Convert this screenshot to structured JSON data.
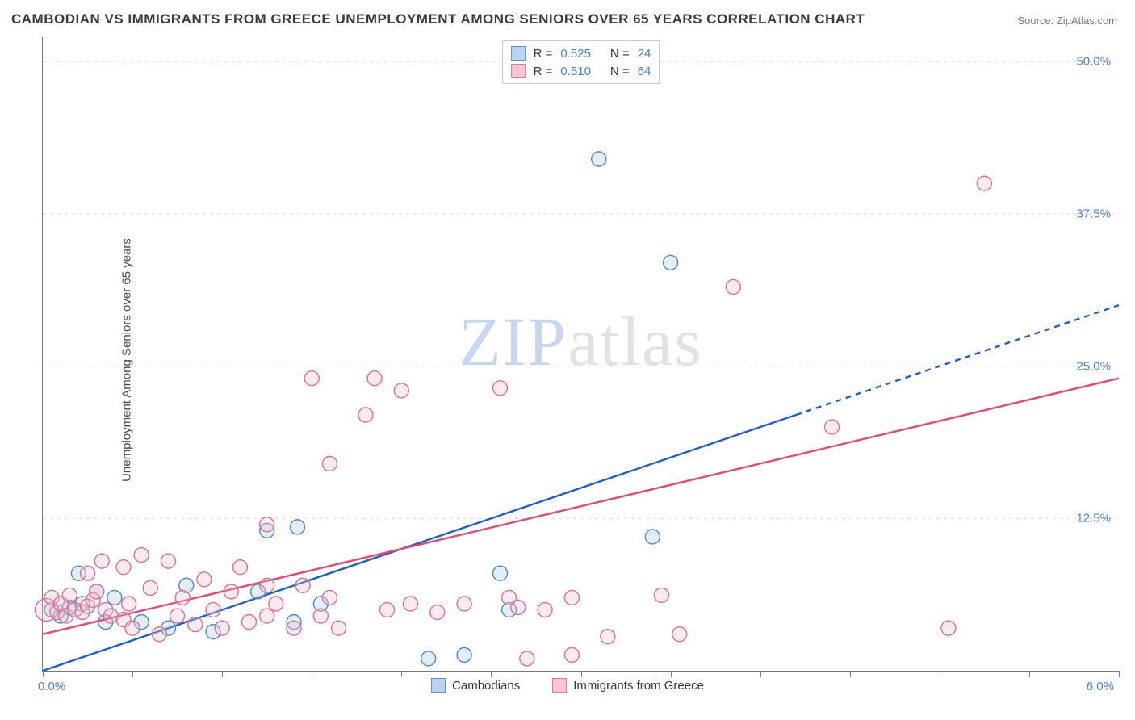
{
  "title": "CAMBODIAN VS IMMIGRANTS FROM GREECE UNEMPLOYMENT AMONG SENIORS OVER 65 YEARS CORRELATION CHART",
  "source": "Source: ZipAtlas.com",
  "ylabel": "Unemployment Among Seniors over 65 years",
  "watermark": {
    "a": "ZIP",
    "b": "atlas"
  },
  "chart": {
    "type": "scatter",
    "background_color": "#ffffff",
    "grid_color": "#d8d8d8",
    "border_color": "#777777",
    "label_color": "#4a7fd6",
    "xlim": [
      0.0,
      6.0
    ],
    "ylim": [
      0.0,
      52.0
    ],
    "x_origin_label": "0.0%",
    "x_max_label": "6.0%",
    "y_ticks": [
      {
        "v": 12.5,
        "label": "12.5%"
      },
      {
        "v": 25.0,
        "label": "25.0%"
      },
      {
        "v": 37.5,
        "label": "37.5%"
      },
      {
        "v": 50.0,
        "label": "50.0%"
      }
    ],
    "x_ticks": [
      0.0,
      0.5,
      1.0,
      1.5,
      2.0,
      2.5,
      3.0,
      3.5,
      4.0,
      4.5,
      5.0,
      5.5,
      6.0
    ],
    "legend_top": [
      {
        "swatch_fill": "#bcd4f3",
        "swatch_stroke": "#5a8fd6",
        "r": "0.525",
        "n": "24"
      },
      {
        "swatch_fill": "#f6c6d2",
        "swatch_stroke": "#e07893",
        "r": "0.510",
        "n": "64"
      }
    ],
    "legend_bottom": [
      {
        "swatch_fill": "#bcd4f3",
        "swatch_stroke": "#5a8fd6",
        "label": "Cambodians"
      },
      {
        "swatch_fill": "#f6c6d2",
        "swatch_stroke": "#e07893",
        "label": "Immigrants from Greece"
      }
    ],
    "marker_radius": 9,
    "large_marker_radius": 14,
    "series": [
      {
        "name": "Cambodians",
        "color_fill": "#a9caf1",
        "color_stroke": "#4f86d1",
        "trend": {
          "color": "#205fc2",
          "width": 2.4,
          "y0": 0.0,
          "y1": 30.0,
          "solid_xmax": 4.2
        },
        "points": [
          {
            "x": 0.05,
            "y": 5.0
          },
          {
            "x": 0.1,
            "y": 4.5
          },
          {
            "x": 0.15,
            "y": 5.2
          },
          {
            "x": 0.2,
            "y": 8.0
          },
          {
            "x": 0.22,
            "y": 5.5
          },
          {
            "x": 0.3,
            "y": 6.5
          },
          {
            "x": 0.35,
            "y": 4.0
          },
          {
            "x": 0.4,
            "y": 6.0
          },
          {
            "x": 0.55,
            "y": 4.0
          },
          {
            "x": 0.7,
            "y": 3.5
          },
          {
            "x": 0.8,
            "y": 7.0
          },
          {
            "x": 0.95,
            "y": 3.2
          },
          {
            "x": 1.2,
            "y": 6.5
          },
          {
            "x": 1.25,
            "y": 11.5
          },
          {
            "x": 1.4,
            "y": 4.0
          },
          {
            "x": 1.42,
            "y": 11.8
          },
          {
            "x": 1.55,
            "y": 5.5
          },
          {
            "x": 2.15,
            "y": 1.0
          },
          {
            "x": 2.35,
            "y": 1.3
          },
          {
            "x": 2.55,
            "y": 8.0
          },
          {
            "x": 2.6,
            "y": 5.0
          },
          {
            "x": 3.4,
            "y": 11.0
          },
          {
            "x": 3.5,
            "y": 33.5
          },
          {
            "x": 3.1,
            "y": 42.0
          }
        ]
      },
      {
        "name": "Immigrants from Greece",
        "color_fill": "#f4bfcf",
        "color_stroke": "#de6f8e",
        "trend": {
          "color": "#e24a74",
          "width": 2.4,
          "y0": 3.0,
          "y1": 24.0,
          "solid_xmax": 6.0
        },
        "points": [
          {
            "x": 0.02,
            "y": 5.0,
            "r": 14
          },
          {
            "x": 0.05,
            "y": 6.0
          },
          {
            "x": 0.08,
            "y": 4.8
          },
          {
            "x": 0.1,
            "y": 5.5
          },
          {
            "x": 0.13,
            "y": 4.5
          },
          {
            "x": 0.15,
            "y": 6.2
          },
          {
            "x": 0.18,
            "y": 5.0
          },
          {
            "x": 0.22,
            "y": 4.8
          },
          {
            "x": 0.25,
            "y": 5.3
          },
          {
            "x": 0.25,
            "y": 8.0
          },
          {
            "x": 0.28,
            "y": 5.8
          },
          {
            "x": 0.3,
            "y": 6.5
          },
          {
            "x": 0.33,
            "y": 9.0
          },
          {
            "x": 0.35,
            "y": 5.0
          },
          {
            "x": 0.38,
            "y": 4.5
          },
          {
            "x": 0.45,
            "y": 8.5
          },
          {
            "x": 0.45,
            "y": 4.2
          },
          {
            "x": 0.48,
            "y": 5.5
          },
          {
            "x": 0.5,
            "y": 3.5
          },
          {
            "x": 0.55,
            "y": 9.5
          },
          {
            "x": 0.6,
            "y": 6.8
          },
          {
            "x": 0.65,
            "y": 3.0
          },
          {
            "x": 0.7,
            "y": 9.0
          },
          {
            "x": 0.75,
            "y": 4.5
          },
          {
            "x": 0.78,
            "y": 6.0
          },
          {
            "x": 0.85,
            "y": 3.8
          },
          {
            "x": 0.9,
            "y": 7.5
          },
          {
            "x": 0.95,
            "y": 5.0
          },
          {
            "x": 1.0,
            "y": 3.5
          },
          {
            "x": 1.05,
            "y": 6.5
          },
          {
            "x": 1.1,
            "y": 8.5
          },
          {
            "x": 1.15,
            "y": 4.0
          },
          {
            "x": 1.25,
            "y": 12.0
          },
          {
            "x": 1.25,
            "y": 7.0
          },
          {
            "x": 1.25,
            "y": 4.5
          },
          {
            "x": 1.3,
            "y": 5.5
          },
          {
            "x": 1.4,
            "y": 3.5
          },
          {
            "x": 1.45,
            "y": 7.0
          },
          {
            "x": 1.5,
            "y": 24.0
          },
          {
            "x": 1.55,
            "y": 4.5
          },
          {
            "x": 1.6,
            "y": 6.0
          },
          {
            "x": 1.65,
            "y": 3.5
          },
          {
            "x": 1.6,
            "y": 17.0
          },
          {
            "x": 1.8,
            "y": 21.0
          },
          {
            "x": 1.85,
            "y": 24.0
          },
          {
            "x": 1.92,
            "y": 5.0
          },
          {
            "x": 2.0,
            "y": 23.0
          },
          {
            "x": 2.05,
            "y": 5.5
          },
          {
            "x": 2.2,
            "y": 4.8
          },
          {
            "x": 2.35,
            "y": 5.5
          },
          {
            "x": 2.55,
            "y": 23.2
          },
          {
            "x": 2.6,
            "y": 6.0
          },
          {
            "x": 2.65,
            "y": 5.2
          },
          {
            "x": 2.7,
            "y": 1.0
          },
          {
            "x": 2.8,
            "y": 5.0
          },
          {
            "x": 2.95,
            "y": 6.0
          },
          {
            "x": 2.95,
            "y": 1.3
          },
          {
            "x": 3.15,
            "y": 2.8
          },
          {
            "x": 3.45,
            "y": 6.2
          },
          {
            "x": 3.55,
            "y": 3.0
          },
          {
            "x": 3.85,
            "y": 31.5
          },
          {
            "x": 4.4,
            "y": 20.0
          },
          {
            "x": 5.05,
            "y": 3.5
          },
          {
            "x": 5.25,
            "y": 40.0
          }
        ]
      }
    ]
  }
}
